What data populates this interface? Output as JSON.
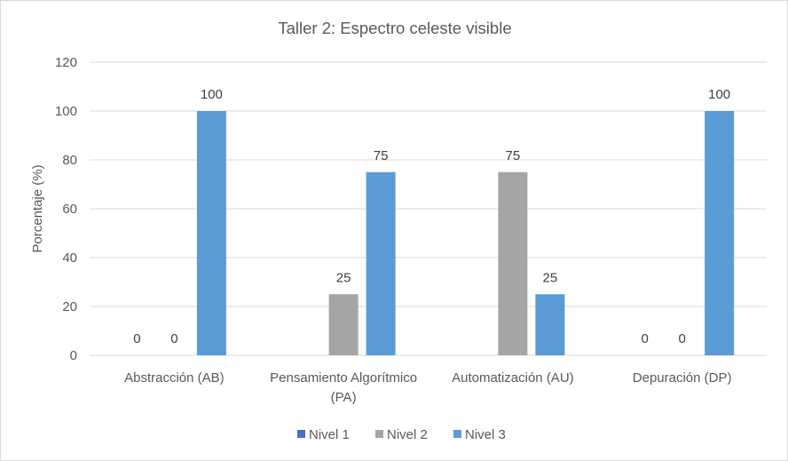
{
  "chart_data": {
    "type": "bar",
    "title": "Taller 2: Espectro celeste visible",
    "ylabel": "Porcentaje (%)",
    "xlabel": "",
    "categories": [
      [
        "Abstracción (AB)"
      ],
      [
        "Pensamiento Algorítmico",
        "(PA)"
      ],
      [
        "Automatización (AU)"
      ],
      [
        "Depuración (DP)"
      ]
    ],
    "series": [
      {
        "name": "Nivel 1",
        "color": "#4472c4",
        "values": [
          0,
          0,
          0,
          0
        ]
      },
      {
        "name": "Nivel 2",
        "color": "#a5a5a5",
        "values": [
          0,
          25,
          75,
          0
        ]
      },
      {
        "name": "Nivel 3",
        "color": "#5b9bd5",
        "values": [
          100,
          75,
          25,
          100
        ]
      }
    ],
    "data_labels": [
      [
        "0",
        "",
        "",
        "0"
      ],
      [
        "0",
        "25",
        "75",
        "0"
      ],
      [
        "100",
        "75",
        "25",
        "100"
      ]
    ],
    "ylim": [
      0,
      120
    ],
    "yticks": [
      0,
      20,
      40,
      60,
      80,
      100,
      120
    ],
    "grid": true,
    "legend_position": "bottom"
  }
}
